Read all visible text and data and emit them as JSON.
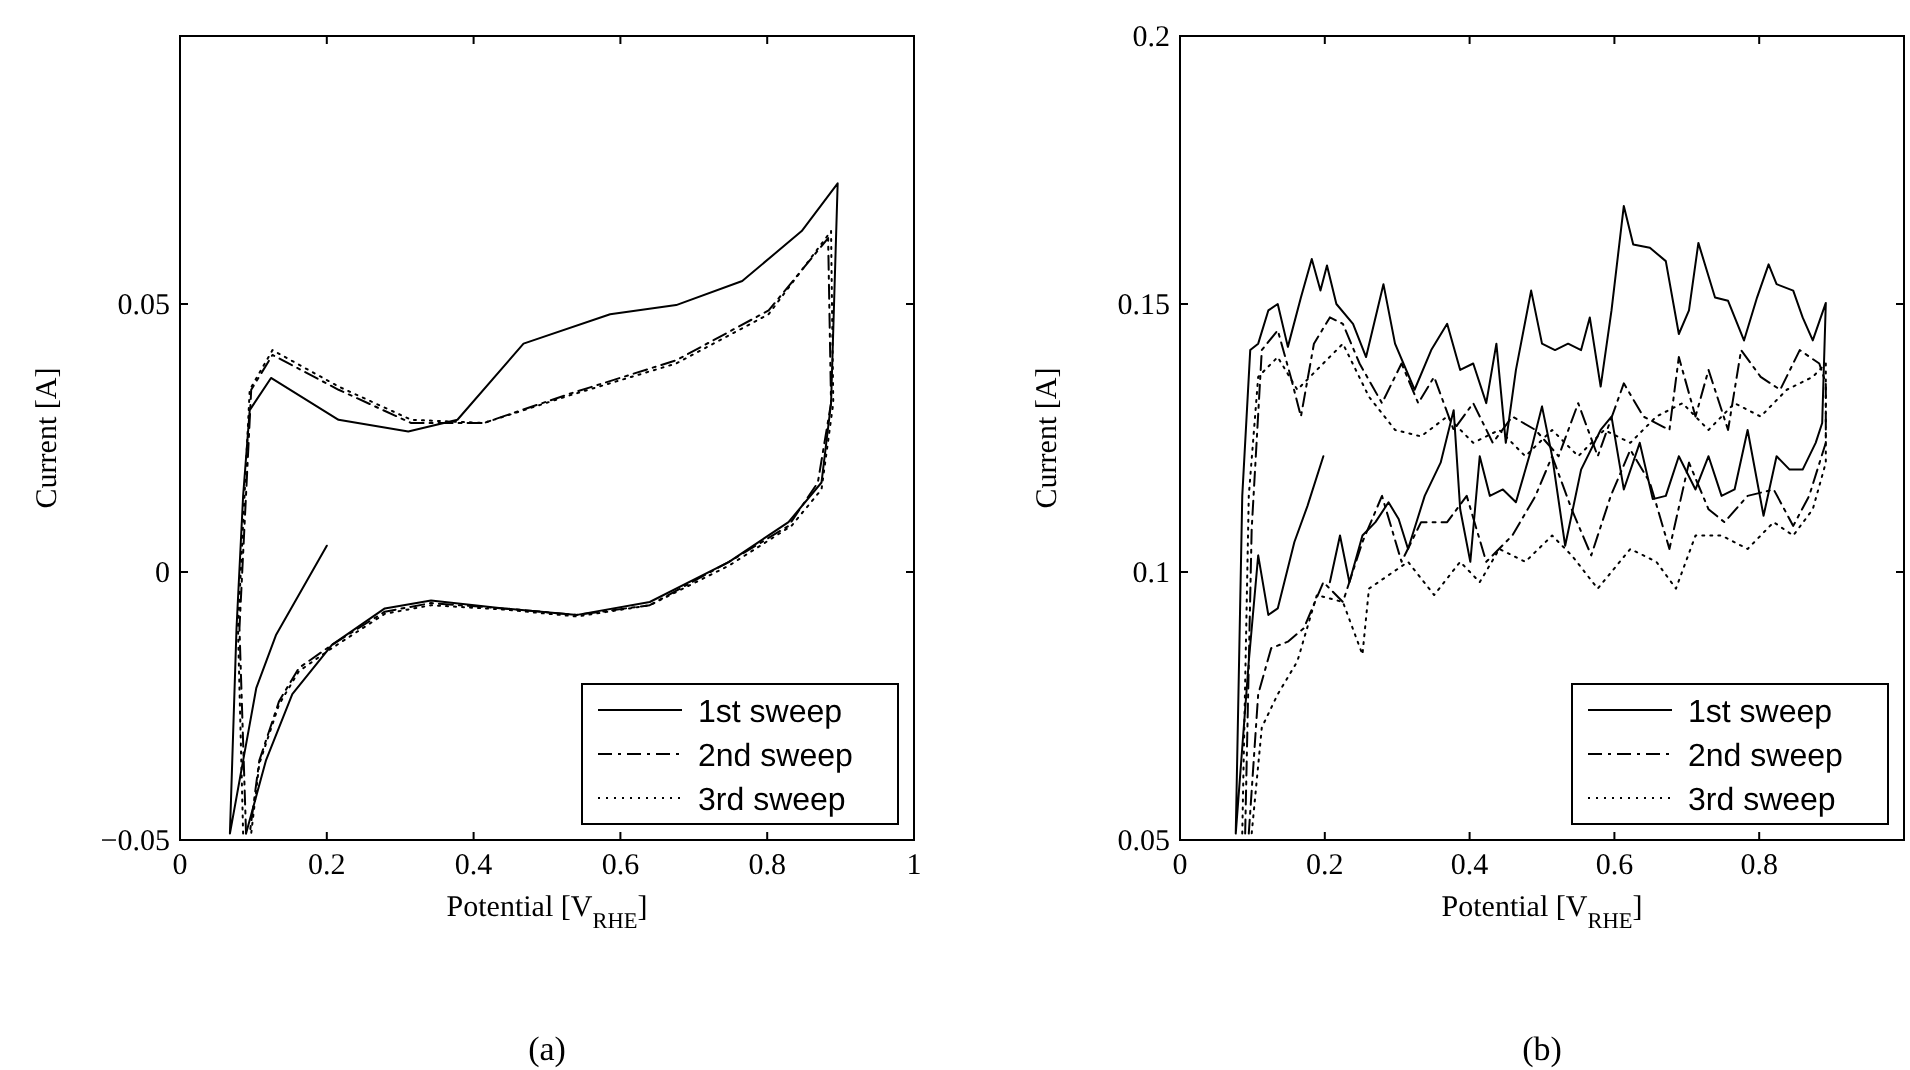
{
  "chart_data": [
    {
      "type": "line",
      "xlabel": "Potential [V$_{RHE}$]",
      "ylabel": "Current [A]",
      "xlim": [
        0,
        1
      ],
      "ylim": [
        -0.05,
        0.1
      ],
      "xticks": [
        0,
        0.2,
        0.4,
        0.6,
        0.8,
        1
      ],
      "yticks": [
        {
          "value": -0.05,
          "label": "−0.05"
        },
        0,
        0.05
      ],
      "grid": false,
      "legend": "bottom right",
      "annotations": [
        "(a)"
      ],
      "series": [
        {
          "name": "1st sweep",
          "color": "#000000",
          "line_style": "solid",
          "x": [
            0.2,
            0.131,
            0.104,
            0.086,
            0.068,
            0.077,
            0.086,
            0.095,
            0.124,
            0.216,
            0.311,
            0.378,
            0.468,
            0.586,
            0.676,
            0.766,
            0.847,
            0.896,
            0.887,
            0.874,
            0.829,
            0.748,
            0.64,
            0.541,
            0.441,
            0.342,
            0.279,
            0.207,
            0.153,
            0.117,
            0.09
          ],
          "values": [
            0.0049,
            -0.0117,
            -0.0216,
            -0.0352,
            -0.0488,
            -0.0105,
            0.0142,
            0.0302,
            0.0362,
            0.0284,
            0.0262,
            0.0284,
            0.0426,
            0.0481,
            0.0498,
            0.0543,
            0.0636,
            0.0725,
            0.0315,
            0.0167,
            0.0093,
            0.0019,
            -0.0056,
            -0.008,
            -0.0068,
            -0.0053,
            -0.0068,
            -0.0136,
            -0.0228,
            -0.0352,
            -0.0488
          ]
        },
        {
          "name": "2nd sweep",
          "color": "#000000",
          "line_style": "dashed",
          "x": [
            0.09,
            0.081,
            0.097,
            0.126,
            0.216,
            0.315,
            0.414,
            0.532,
            0.676,
            0.802,
            0.883,
            0.887,
            0.869,
            0.829,
            0.748,
            0.64,
            0.541,
            0.441,
            0.342,
            0.279,
            0.207,
            0.162,
            0.135,
            0.108,
            0.095
          ],
          "values": [
            -0.0488,
            -0.0105,
            0.034,
            0.0405,
            0.034,
            0.0278,
            0.0278,
            0.0333,
            0.0395,
            0.0488,
            0.0623,
            0.0315,
            0.0167,
            0.0086,
            0.0019,
            -0.0062,
            -0.008,
            -0.0068,
            -0.0058,
            -0.0074,
            -0.0136,
            -0.0179,
            -0.0241,
            -0.0352,
            -0.0488
          ]
        },
        {
          "name": "3rd sweep",
          "color": "#000000",
          "line_style": "dotted",
          "x": [
            0.086,
            0.079,
            0.095,
            0.126,
            0.216,
            0.315,
            0.414,
            0.532,
            0.676,
            0.802,
            0.887,
            0.89,
            0.874,
            0.833,
            0.748,
            0.64,
            0.541,
            0.441,
            0.342,
            0.279,
            0.207,
            0.162,
            0.135,
            0.108,
            0.097
          ],
          "values": [
            -0.0488,
            -0.0105,
            0.034,
            0.0414,
            0.0346,
            0.0284,
            0.0278,
            0.033,
            0.0389,
            0.0481,
            0.0636,
            0.0315,
            0.0154,
            0.0086,
            0.0012,
            -0.0062,
            -0.0083,
            -0.007,
            -0.0062,
            -0.0078,
            -0.0142,
            -0.0185,
            -0.0247,
            -0.0358,
            -0.0488
          ]
        }
      ]
    },
    {
      "type": "line",
      "xlabel": "Potential [V$_{RHE}$]",
      "ylabel": "Current [A]",
      "xlim": [
        0,
        1
      ],
      "ylim": [
        0.05,
        0.2
      ],
      "xticks": [
        0,
        0.2,
        0.4,
        0.6,
        0.8
      ],
      "yticks": [
        0.05,
        0.1,
        0.15,
        0.2
      ],
      "grid": false,
      "legend": "bottom right",
      "annotations": [
        "(b)"
      ],
      "series": [
        {
          "name": "1st sweep",
          "color": "#000000",
          "line_style": "solid",
          "x": [
            0.198,
            0.176,
            0.158,
            0.135,
            0.122,
            0.108,
            0.095,
            0.077,
            0.086,
            0.097,
            0.108,
            0.122,
            0.135,
            0.149,
            0.167,
            0.182,
            0.194,
            0.203,
            0.216,
            0.239,
            0.257,
            0.281,
            0.297,
            0.324,
            0.347,
            0.369,
            0.387,
            0.405,
            0.423,
            0.437,
            0.45,
            0.464,
            0.485,
            0.5,
            0.518,
            0.536,
            0.554,
            0.566,
            0.581,
            0.596,
            0.613,
            0.626,
            0.649,
            0.671,
            0.689,
            0.703,
            0.716,
            0.739,
            0.757,
            0.779,
            0.797,
            0.813,
            0.824,
            0.847,
            0.86,
            0.874,
            0.892,
            0.887,
            0.878,
            0.86,
            0.842,
            0.824,
            0.806,
            0.784,
            0.766,
            0.748,
            0.73,
            0.712,
            0.689,
            0.671,
            0.653,
            0.635,
            0.613,
            0.596,
            0.581,
            0.554,
            0.532,
            0.514,
            0.5,
            0.485,
            0.464,
            0.446,
            0.428,
            0.414,
            0.401,
            0.387,
            0.378,
            0.36,
            0.338,
            0.315,
            0.302,
            0.288,
            0.27,
            0.252,
            0.234,
            0.221,
            0.207
          ],
          "values": [
            0.1216,
            0.1123,
            0.1056,
            0.0932,
            0.092,
            0.1031,
            0.0833,
            0.0512,
            0.1142,
            0.1414,
            0.1426,
            0.1488,
            0.15,
            0.142,
            0.1512,
            0.1584,
            0.1525,
            0.1572,
            0.15,
            0.1463,
            0.1401,
            0.1537,
            0.1426,
            0.134,
            0.1414,
            0.1463,
            0.1377,
            0.1389,
            0.1315,
            0.1426,
            0.1241,
            0.1377,
            0.1525,
            0.1426,
            0.1414,
            0.1426,
            0.1414,
            0.1475,
            0.1346,
            0.1488,
            0.1683,
            0.1611,
            0.1605,
            0.158,
            0.1444,
            0.1488,
            0.1614,
            0.1512,
            0.1506,
            0.1432,
            0.1512,
            0.1574,
            0.1537,
            0.1525,
            0.1475,
            0.1432,
            0.1502,
            0.1278,
            0.1241,
            0.1191,
            0.1191,
            0.1216,
            0.1105,
            0.1265,
            0.1154,
            0.1142,
            0.1216,
            0.1154,
            0.1216,
            0.1142,
            0.1136,
            0.1241,
            0.1154,
            0.129,
            0.1265,
            0.1191,
            0.1049,
            0.1216,
            0.1309,
            0.1228,
            0.113,
            0.1154,
            0.1142,
            0.1216,
            0.1019,
            0.1117,
            0.1302,
            0.1204,
            0.1142,
            0.1043,
            0.1099,
            0.113,
            0.1093,
            0.1068,
            0.0981,
            0.1068,
            0.0981
          ]
        },
        {
          "name": "2nd sweep",
          "color": "#000000",
          "line_style": "dashed",
          "x": [
            0.09,
            0.099,
            0.113,
            0.135,
            0.153,
            0.167,
            0.185,
            0.207,
            0.225,
            0.248,
            0.279,
            0.306,
            0.329,
            0.351,
            0.378,
            0.405,
            0.432,
            0.459,
            0.491,
            0.523,
            0.55,
            0.577,
            0.613,
            0.64,
            0.676,
            0.689,
            0.712,
            0.73,
            0.757,
            0.775,
            0.802,
            0.829,
            0.856,
            0.883,
            0.892,
            0.892,
            0.869,
            0.847,
            0.82,
            0.784,
            0.752,
            0.73,
            0.703,
            0.676,
            0.649,
            0.622,
            0.595,
            0.568,
            0.541,
            0.514,
            0.491,
            0.459,
            0.423,
            0.396,
            0.369,
            0.333,
            0.306,
            0.279,
            0.252,
            0.225,
            0.198,
            0.171,
            0.149,
            0.126,
            0.108,
            0.095
          ],
          "values": [
            0.0512,
            0.108,
            0.1414,
            0.1451,
            0.1364,
            0.129,
            0.1426,
            0.1475,
            0.1463,
            0.1389,
            0.1315,
            0.1389,
            0.1315,
            0.1364,
            0.1265,
            0.1315,
            0.1241,
            0.129,
            0.1265,
            0.1216,
            0.1315,
            0.1216,
            0.1352,
            0.129,
            0.1265,
            0.1401,
            0.129,
            0.1377,
            0.1265,
            0.1414,
            0.1364,
            0.134,
            0.1414,
            0.1389,
            0.1352,
            0.1241,
            0.1142,
            0.1086,
            0.1154,
            0.1142,
            0.1093,
            0.1117,
            0.1204,
            0.1043,
            0.1167,
            0.1228,
            0.1142,
            0.1031,
            0.1117,
            0.1216,
            0.1142,
            0.1068,
            0.1019,
            0.1142,
            0.1093,
            0.1093,
            0.1019,
            0.1142,
            0.1056,
            0.0944,
            0.0981,
            0.0895,
            0.087,
            0.0858,
            0.0772,
            0.0512
          ]
        },
        {
          "name": "3rd sweep",
          "color": "#000000",
          "line_style": "dotted",
          "x": [
            0.086,
            0.095,
            0.108,
            0.135,
            0.162,
            0.189,
            0.225,
            0.261,
            0.297,
            0.333,
            0.369,
            0.405,
            0.441,
            0.477,
            0.514,
            0.55,
            0.586,
            0.622,
            0.658,
            0.694,
            0.73,
            0.766,
            0.802,
            0.838,
            0.874,
            0.892,
            0.892,
            0.874,
            0.847,
            0.82,
            0.784,
            0.748,
            0.712,
            0.685,
            0.658,
            0.622,
            0.577,
            0.541,
            0.514,
            0.477,
            0.441,
            0.414,
            0.387,
            0.351,
            0.315,
            0.288,
            0.261,
            0.252,
            0.225,
            0.189,
            0.162,
            0.135,
            0.113,
            0.099
          ],
          "values": [
            0.0512,
            0.1142,
            0.1364,
            0.1401,
            0.134,
            0.1377,
            0.1426,
            0.1327,
            0.1265,
            0.1253,
            0.129,
            0.1241,
            0.1265,
            0.1216,
            0.1265,
            0.1216,
            0.1265,
            0.1241,
            0.129,
            0.1315,
            0.1265,
            0.1315,
            0.129,
            0.134,
            0.1364,
            0.1389,
            0.1204,
            0.1117,
            0.1068,
            0.1093,
            0.1043,
            0.1068,
            0.1068,
            0.0969,
            0.1019,
            0.1043,
            0.0969,
            0.1031,
            0.1068,
            0.1019,
            0.1043,
            0.0981,
            0.1019,
            0.0957,
            0.1019,
            0.0994,
            0.0969,
            0.0846,
            0.0944,
            0.0957,
            0.0833,
            0.0772,
            0.071,
            0.0512
          ]
        }
      ]
    }
  ]
}
